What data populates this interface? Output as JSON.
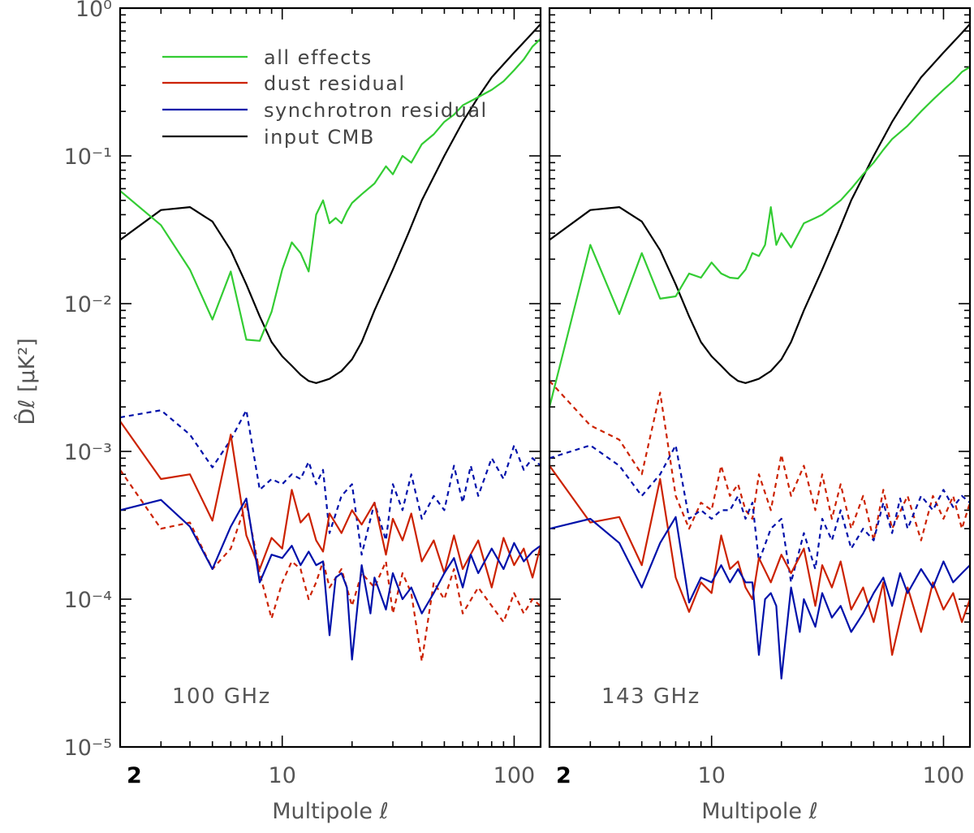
{
  "chart_data": [
    {
      "type": "line",
      "panel_label": "100 GHz",
      "xlabel": "Multipole ℓ",
      "ylabel": "D̂ℓ [μK²]",
      "xscale": "log",
      "yscale": "log",
      "xlim": [
        2,
        130
      ],
      "ylim": [
        1e-05,
        1
      ],
      "xticks": [
        "2",
        "10",
        "100"
      ],
      "yticks": [
        "10⁻⁵",
        "10⁻⁴",
        "10⁻³",
        "10⁻²",
        "10⁻¹",
        "10⁰"
      ],
      "legend": {
        "placement": "top-center",
        "entries": [
          "all effects",
          "dust residual",
          "synchrotron residual",
          "input CMB"
        ]
      },
      "series": [
        {
          "name": "all effects",
          "color": "#33cc33",
          "style": "solid",
          "x": [
            2,
            3,
            4,
            5,
            6,
            7,
            8,
            9,
            10,
            11,
            12,
            13,
            14,
            15,
            16,
            17,
            18,
            19,
            20,
            22,
            25,
            28,
            30,
            33,
            36,
            40,
            45,
            50,
            55,
            60,
            70,
            80,
            90,
            100,
            110,
            120,
            130
          ],
          "y": [
            0.058,
            0.034,
            0.017,
            0.0078,
            0.0165,
            0.0057,
            0.0056,
            0.0088,
            0.017,
            0.026,
            0.022,
            0.0165,
            0.04,
            0.05,
            0.035,
            0.038,
            0.035,
            0.042,
            0.048,
            0.055,
            0.065,
            0.085,
            0.075,
            0.1,
            0.09,
            0.12,
            0.14,
            0.17,
            0.19,
            0.22,
            0.25,
            0.28,
            0.32,
            0.38,
            0.45,
            0.55,
            0.62
          ]
        },
        {
          "name": "dust residual",
          "color": "#cc2200",
          "style": "solid",
          "x": [
            2,
            3,
            4,
            5,
            6,
            7,
            8,
            9,
            10,
            11,
            12,
            13,
            14,
            15,
            16,
            18,
            20,
            22,
            25,
            28,
            30,
            33,
            36,
            40,
            45,
            50,
            55,
            60,
            70,
            80,
            90,
            100,
            110,
            120,
            130
          ],
          "y": [
            0.0016,
            0.00065,
            0.0007,
            0.00034,
            0.0013,
            0.00027,
            0.00016,
            0.00026,
            0.00022,
            0.00055,
            0.00033,
            0.00038,
            0.00025,
            0.00021,
            0.00038,
            0.00028,
            0.0004,
            0.00032,
            0.00045,
            0.0002,
            0.00035,
            0.00025,
            0.00038,
            0.00018,
            0.00025,
            0.00015,
            0.00027,
            0.00016,
            0.00025,
            0.00012,
            0.00026,
            0.00017,
            0.00022,
            0.00014,
            0.00023
          ]
        },
        {
          "name": "synchrotron residual",
          "color": "#0011aa",
          "style": "solid",
          "x": [
            2,
            3,
            4,
            5,
            6,
            7,
            8,
            9,
            10,
            11,
            12,
            13,
            14,
            15,
            16,
            17,
            18,
            19,
            20,
            22,
            24,
            25,
            28,
            30,
            33,
            36,
            40,
            45,
            50,
            55,
            60,
            65,
            70,
            80,
            90,
            100,
            110,
            120,
            130
          ],
          "y": [
            0.0004,
            0.00047,
            0.00031,
            0.00016,
            0.00031,
            0.00048,
            0.00013,
            0.0002,
            0.00019,
            0.00023,
            0.00017,
            0.00021,
            0.00017,
            0.00018,
            5.7e-05,
            0.00014,
            0.00015,
            0.00012,
            3.9e-05,
            0.00017,
            8e-05,
            0.00014,
            8.5e-05,
            0.00015,
            0.0001,
            0.00012,
            8e-05,
            0.00011,
            0.00015,
            0.00019,
            0.00012,
            0.0002,
            0.00015,
            0.00022,
            0.00016,
            0.00024,
            0.00018,
            0.00021,
            0.00023
          ]
        },
        {
          "name": "input CMB",
          "color": "#000000",
          "style": "solid",
          "x": [
            2,
            3,
            4,
            5,
            6,
            7,
            8,
            9,
            10,
            11,
            12,
            13,
            14,
            15,
            16,
            18,
            20,
            22,
            25,
            30,
            35,
            40,
            50,
            60,
            70,
            80,
            100,
            120,
            130
          ],
          "y": [
            0.027,
            0.043,
            0.045,
            0.036,
            0.023,
            0.0135,
            0.0082,
            0.0055,
            0.0044,
            0.0038,
            0.0033,
            0.003,
            0.0029,
            0.003,
            0.0031,
            0.0035,
            0.0042,
            0.0055,
            0.009,
            0.017,
            0.03,
            0.05,
            0.1,
            0.17,
            0.25,
            0.34,
            0.5,
            0.68,
            0.78
          ]
        },
        {
          "name": "",
          "color": "#0011aa",
          "style": "dashed",
          "x": [
            2,
            3,
            4,
            5,
            6,
            7,
            8,
            9,
            10,
            11,
            12,
            13,
            14,
            15,
            16,
            18,
            20,
            22,
            25,
            28,
            30,
            33,
            36,
            40,
            45,
            50,
            55,
            60,
            65,
            70,
            80,
            90,
            100,
            110,
            120,
            130
          ],
          "y": [
            0.0017,
            0.0019,
            0.0013,
            0.00078,
            0.0012,
            0.0019,
            0.00055,
            0.00065,
            0.0006,
            0.0007,
            0.00065,
            0.00085,
            0.0006,
            0.00075,
            0.00028,
            0.0005,
            0.0006,
            0.0002,
            0.00045,
            0.00025,
            0.0006,
            0.0004,
            0.0007,
            0.00035,
            0.0005,
            0.0004,
            0.0008,
            0.00045,
            0.0008,
            0.0005,
            0.0009,
            0.00065,
            0.0011,
            0.00075,
            0.0009,
            0.0008
          ]
        },
        {
          "name": "",
          "color": "#cc2200",
          "style": "dashed",
          "x": [
            2,
            3,
            4,
            5,
            6,
            7,
            8,
            9,
            10,
            11,
            12,
            13,
            14,
            15,
            16,
            18,
            20,
            22,
            25,
            28,
            30,
            33,
            36,
            40,
            45,
            50,
            55,
            60,
            70,
            80,
            90,
            100,
            110,
            120,
            130
          ],
          "y": [
            0.00075,
            0.0003,
            0.00033,
            0.00016,
            0.00022,
            0.00045,
            0.00015,
            7.4e-05,
            0.00013,
            0.00018,
            0.00016,
            0.0001,
            0.00013,
            0.00018,
            0.00012,
            0.00016,
            9e-05,
            0.00015,
            0.00012,
            0.00018,
            8e-05,
            0.00015,
            0.00011,
            3.8e-05,
            0.00013,
            0.0001,
            0.00016,
            8e-05,
            0.00012,
            9e-05,
            7e-05,
            0.00011,
            8e-05,
            0.0001,
            9e-05
          ]
        }
      ]
    },
    {
      "type": "line",
      "panel_label": "143 GHz",
      "xlabel": "Multipole ℓ",
      "xscale": "log",
      "yscale": "log",
      "xlim": [
        2,
        130
      ],
      "ylim": [
        1e-05,
        1
      ],
      "xticks": [
        "2",
        "10",
        "100"
      ],
      "series": [
        {
          "name": "all effects",
          "color": "#33cc33",
          "style": "solid",
          "x": [
            2,
            3,
            4,
            5,
            6,
            7,
            8,
            9,
            10,
            11,
            12,
            13,
            14,
            15,
            16,
            17,
            18,
            19,
            20,
            22,
            25,
            28,
            30,
            33,
            36,
            40,
            45,
            50,
            55,
            60,
            70,
            80,
            90,
            100,
            110,
            120,
            130
          ],
          "y": [
            0.002,
            0.025,
            0.0085,
            0.022,
            0.0108,
            0.0112,
            0.016,
            0.015,
            0.019,
            0.016,
            0.015,
            0.0148,
            0.017,
            0.022,
            0.021,
            0.025,
            0.045,
            0.025,
            0.03,
            0.024,
            0.035,
            0.038,
            0.04,
            0.045,
            0.05,
            0.06,
            0.075,
            0.09,
            0.11,
            0.13,
            0.16,
            0.2,
            0.24,
            0.28,
            0.32,
            0.37,
            0.4
          ]
        },
        {
          "name": "dust residual",
          "color": "#cc2200",
          "style": "solid",
          "x": [
            2,
            3,
            4,
            5,
            6,
            7,
            8,
            9,
            10,
            11,
            12,
            13,
            14,
            15,
            16,
            18,
            20,
            22,
            25,
            28,
            30,
            33,
            36,
            40,
            45,
            50,
            55,
            60,
            70,
            80,
            90,
            100,
            110,
            120,
            130
          ],
          "y": [
            0.0008,
            0.00033,
            0.00036,
            0.00017,
            0.00065,
            0.00014,
            8.2e-05,
            0.00013,
            0.00011,
            0.00027,
            0.00016,
            0.00018,
            0.00012,
            0.0001,
            0.00019,
            0.00013,
            0.0002,
            0.00015,
            0.00022,
            9e-05,
            0.00017,
            0.00012,
            0.00018,
            8.5e-05,
            0.00012,
            7e-05,
            0.00013,
            4.2e-05,
            0.00012,
            6e-05,
            0.00013,
            8.5e-05,
            0.00011,
            7e-05,
            0.0001
          ]
        },
        {
          "name": "synchrotron residual",
          "color": "#0011aa",
          "style": "solid",
          "x": [
            2,
            3,
            4,
            5,
            6,
            7,
            8,
            9,
            10,
            11,
            12,
            13,
            14,
            15,
            16,
            17,
            18,
            19,
            20,
            22,
            24,
            25,
            28,
            30,
            33,
            36,
            40,
            45,
            50,
            55,
            60,
            65,
            70,
            80,
            90,
            100,
            110,
            120,
            130
          ],
          "y": [
            0.0003,
            0.00035,
            0.00024,
            0.00012,
            0.00024,
            0.00036,
            9.5e-05,
            0.00014,
            0.00013,
            0.00017,
            0.00013,
            0.00016,
            0.00013,
            0.00013,
            4.2e-05,
            0.0001,
            0.00011,
            9e-05,
            2.9e-05,
            0.00012,
            6e-05,
            0.0001,
            6.5e-05,
            0.00011,
            7.5e-05,
            9e-05,
            6e-05,
            8e-05,
            0.00011,
            0.00014,
            9e-05,
            0.00015,
            0.00011,
            0.00016,
            0.00012,
            0.00018,
            0.00013,
            0.00015,
            0.00017
          ]
        },
        {
          "name": "input CMB",
          "color": "#000000",
          "style": "solid",
          "x": [
            2,
            3,
            4,
            5,
            6,
            7,
            8,
            9,
            10,
            11,
            12,
            13,
            14,
            15,
            16,
            18,
            20,
            22,
            25,
            30,
            35,
            40,
            50,
            60,
            70,
            80,
            100,
            120,
            130
          ],
          "y": [
            0.027,
            0.043,
            0.045,
            0.036,
            0.023,
            0.0135,
            0.0082,
            0.0055,
            0.0044,
            0.0038,
            0.0033,
            0.003,
            0.0029,
            0.003,
            0.0031,
            0.0035,
            0.0042,
            0.0055,
            0.009,
            0.017,
            0.03,
            0.05,
            0.1,
            0.17,
            0.25,
            0.34,
            0.5,
            0.68,
            0.78
          ]
        },
        {
          "name": "",
          "color": "#0011aa",
          "style": "dashed",
          "x": [
            2,
            3,
            4,
            5,
            6,
            7,
            8,
            9,
            10,
            11,
            12,
            13,
            14,
            15,
            16,
            18,
            20,
            22,
            25,
            28,
            30,
            33,
            36,
            40,
            45,
            50,
            55,
            60,
            65,
            70,
            80,
            90,
            100,
            110,
            120,
            130
          ],
          "y": [
            0.0009,
            0.0011,
            0.0008,
            0.0005,
            0.0007,
            0.0011,
            0.00035,
            0.0004,
            0.00035,
            0.0004,
            0.0004,
            0.0005,
            0.00035,
            0.00045,
            0.00018,
            0.0003,
            0.00035,
            0.00013,
            0.00028,
            0.00016,
            0.00035,
            0.00025,
            0.0004,
            0.00022,
            0.0003,
            0.00025,
            0.00045,
            0.00028,
            0.00048,
            0.0003,
            0.0005,
            0.0004,
            0.00055,
            0.00042,
            0.0005,
            0.00045
          ]
        },
        {
          "name": "",
          "color": "#cc2200",
          "style": "dashed",
          "x": [
            2,
            3,
            4,
            5,
            6,
            7,
            8,
            9,
            10,
            11,
            12,
            13,
            14,
            15,
            16,
            18,
            20,
            22,
            25,
            28,
            30,
            33,
            36,
            40,
            45,
            50,
            55,
            60,
            70,
            80,
            90,
            100,
            110,
            120,
            130
          ],
          "y": [
            0.003,
            0.0015,
            0.0012,
            0.0007,
            0.0025,
            0.0005,
            0.0003,
            0.00045,
            0.0004,
            0.0008,
            0.0005,
            0.0006,
            0.0004,
            0.00035,
            0.0007,
            0.0004,
            0.00095,
            0.0005,
            0.0008,
            0.0004,
            0.0007,
            0.00035,
            0.0006,
            0.0003,
            0.0005,
            0.00025,
            0.00055,
            0.0003,
            0.0005,
            0.00025,
            0.0005,
            0.00035,
            0.0005,
            0.0003,
            0.00045
          ]
        }
      ]
    }
  ]
}
